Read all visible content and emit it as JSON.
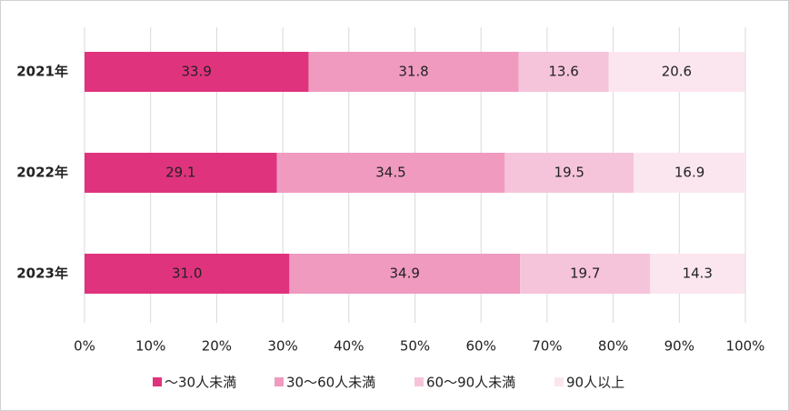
{
  "chart_data": {
    "type": "stacked-bar-horizontal",
    "categories": [
      "2021年",
      "2022年",
      "2023年"
    ],
    "series": [
      {
        "name": "〜30人未満",
        "color": "#e0337e",
        "values": [
          33.9,
          29.1,
          31.0
        ],
        "value_labels": [
          "33.9",
          "29.1",
          "31.0"
        ]
      },
      {
        "name": "30〜60人未満",
        "color": "#f09ac0",
        "values": [
          31.8,
          34.5,
          34.9
        ],
        "value_labels": [
          "31.8",
          "34.5",
          "34.9"
        ]
      },
      {
        "name": "60〜90人未満",
        "color": "#f6c4da",
        "values": [
          13.6,
          19.5,
          19.7
        ],
        "value_labels": [
          "13.6",
          "19.5",
          "19.7"
        ]
      },
      {
        "name": "90人以上",
        "color": "#fbe6ef",
        "values": [
          20.6,
          16.9,
          14.3
        ],
        "value_labels": [
          "20.6",
          "16.9",
          "14.3"
        ]
      }
    ],
    "xlim": [
      0,
      100
    ],
    "xticks": [
      {
        "value": 0,
        "label": "0%"
      },
      {
        "value": 10,
        "label": "10%"
      },
      {
        "value": 20,
        "label": "20%"
      },
      {
        "value": 30,
        "label": "30%"
      },
      {
        "value": 40,
        "label": "40%"
      },
      {
        "value": 50,
        "label": "50%"
      },
      {
        "value": 60,
        "label": "60%"
      },
      {
        "value": 70,
        "label": "70%"
      },
      {
        "value": 80,
        "label": "80%"
      },
      {
        "value": 90,
        "label": "90%"
      },
      {
        "value": 100,
        "label": "100%"
      }
    ],
    "grid": true,
    "legend": "bottom"
  }
}
